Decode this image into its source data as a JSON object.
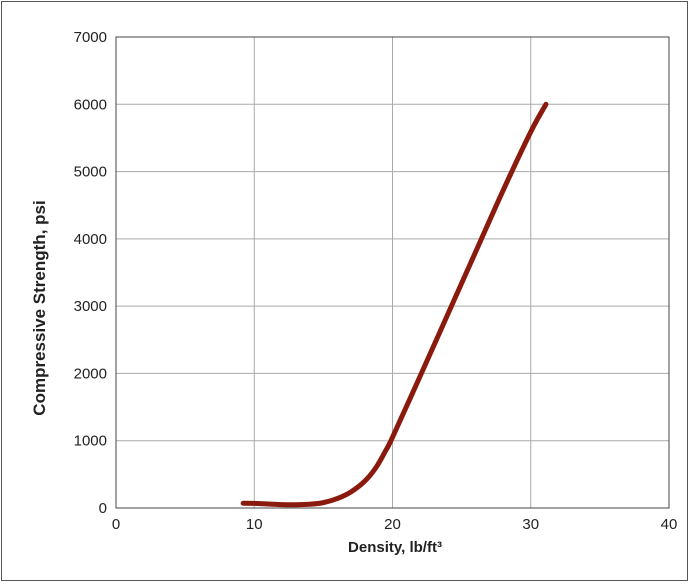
{
  "chart_data": {
    "type": "line",
    "title": "",
    "xlabel": "Density, lb/ft³",
    "ylabel": "Compressive Strength, psi",
    "xlim": [
      0,
      40
    ],
    "ylim": [
      0,
      7000
    ],
    "x_ticks": [
      0,
      10,
      20,
      30,
      40
    ],
    "y_ticks": [
      0,
      1000,
      2000,
      3000,
      4000,
      5000,
      6000,
      7000
    ],
    "grid": true,
    "legend": "none",
    "series": [
      {
        "color": "#8b1a0e",
        "x": [
          9.2,
          10,
          11,
          12,
          13,
          14,
          15,
          16,
          17,
          18,
          18.8,
          19.5,
          20,
          22,
          24,
          26,
          28,
          30,
          31.1
        ],
        "y": [
          70,
          68,
          60,
          50,
          48,
          55,
          80,
          140,
          240,
          400,
          600,
          850,
          1050,
          1960,
          2880,
          3800,
          4720,
          5590,
          6000
        ]
      }
    ]
  }
}
